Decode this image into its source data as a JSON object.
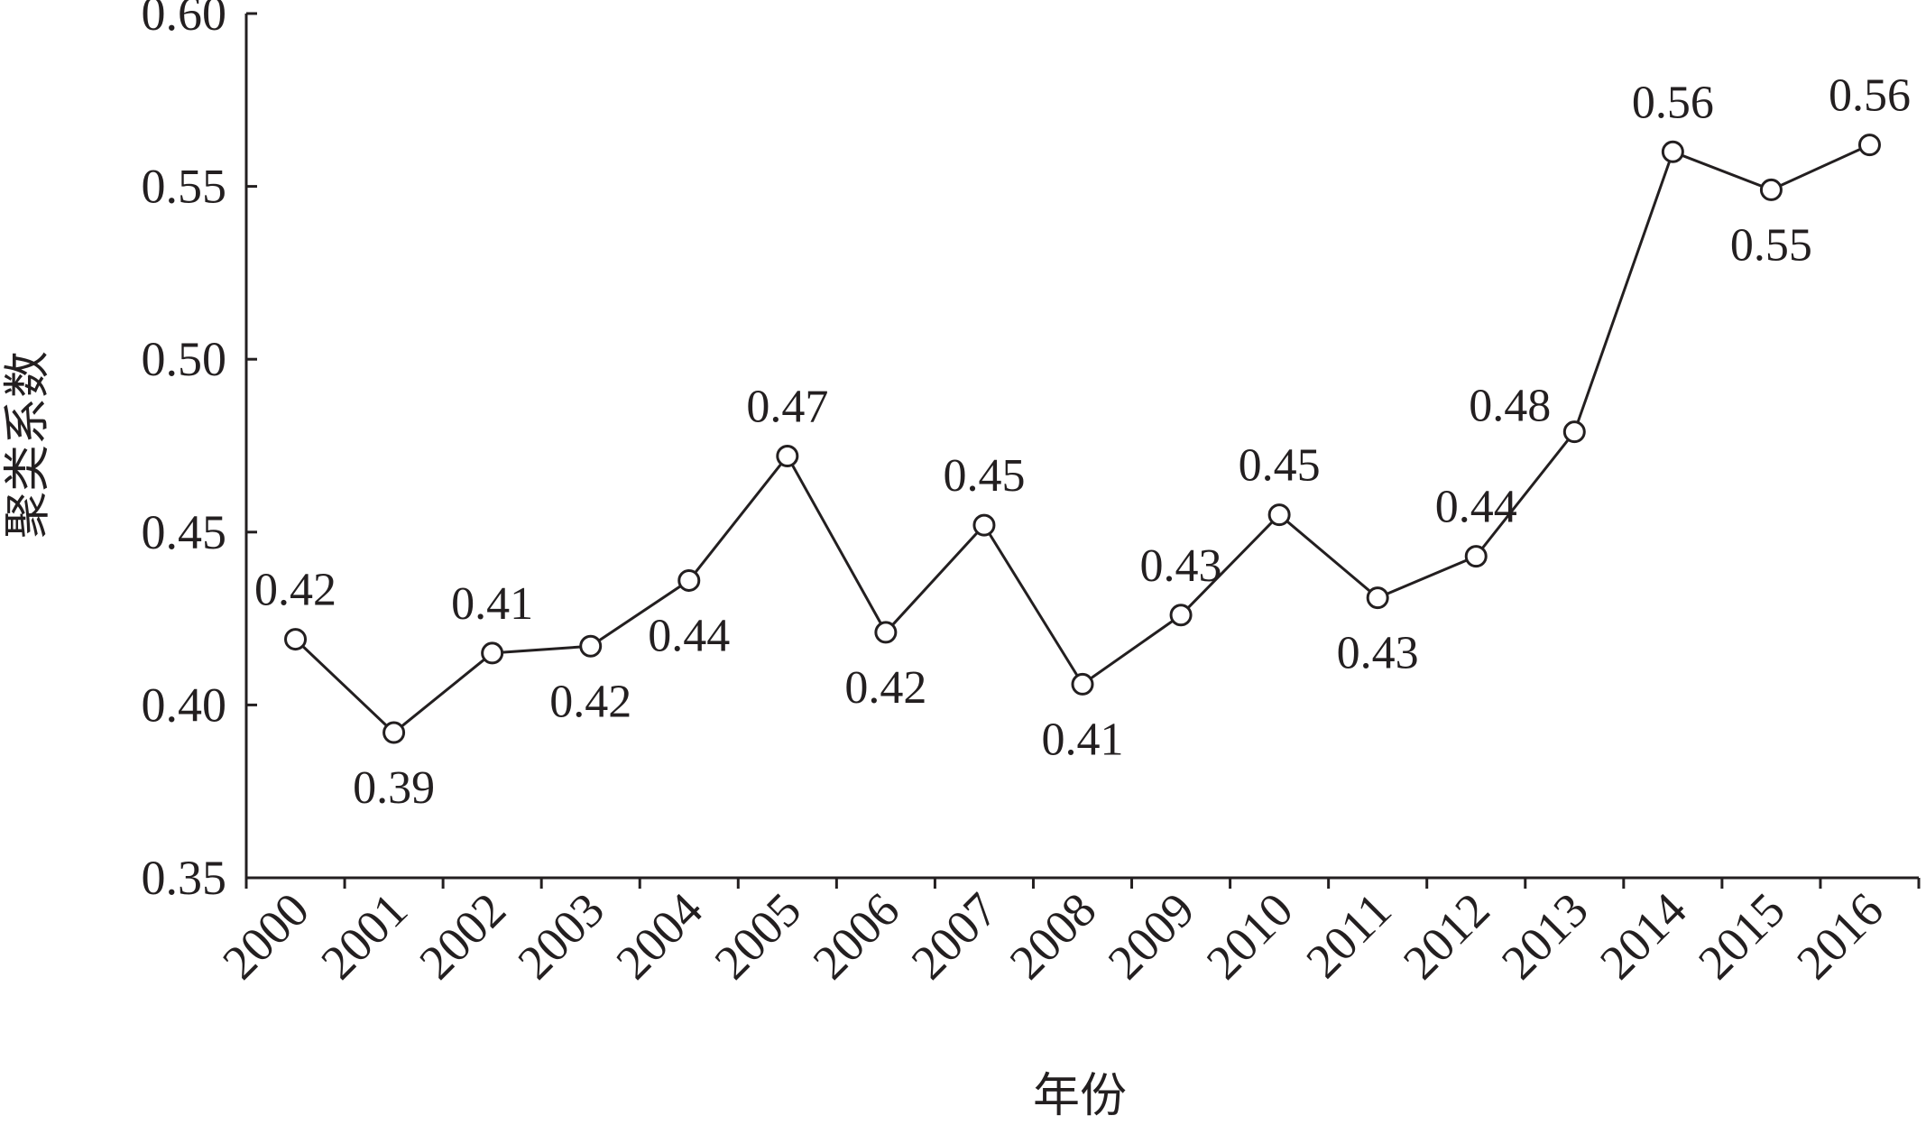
{
  "chart_data": {
    "type": "line",
    "title": "",
    "xlabel": "年份",
    "ylabel": "聚类系数",
    "ylim": [
      0.35,
      0.6
    ],
    "yticks": [
      "0.35",
      "0.40",
      "0.45",
      "0.50",
      "0.55",
      "0.60"
    ],
    "categories": [
      "2000",
      "2001",
      "2002",
      "2003",
      "2004",
      "2005",
      "2006",
      "2007",
      "2008",
      "2009",
      "2010",
      "2011",
      "2012",
      "2013",
      "2014",
      "2015",
      "2016"
    ],
    "values": [
      0.419,
      0.392,
      0.415,
      0.417,
      0.436,
      0.472,
      0.421,
      0.452,
      0.406,
      0.426,
      0.455,
      0.431,
      0.443,
      0.479,
      0.56,
      0.549,
      0.562
    ],
    "data_labels": [
      "0.42",
      "0.39",
      "0.41",
      "0.42",
      "0.44",
      "0.47",
      "0.42",
      "0.45",
      "0.41",
      "0.43",
      "0.45",
      "0.43",
      "0.44",
      "0.48",
      "0.56",
      "0.55",
      "0.56"
    ],
    "label_positions": [
      "above",
      "below",
      "above",
      "below",
      "below",
      "above",
      "below",
      "above",
      "below",
      "above",
      "above",
      "below",
      "above",
      "left",
      "above",
      "below",
      "above"
    ],
    "marker": "open-circle",
    "grid": false,
    "legend": "none",
    "colors": {
      "line": "#231f20",
      "marker_fill": "#ffffff",
      "text": "#231f20"
    }
  }
}
